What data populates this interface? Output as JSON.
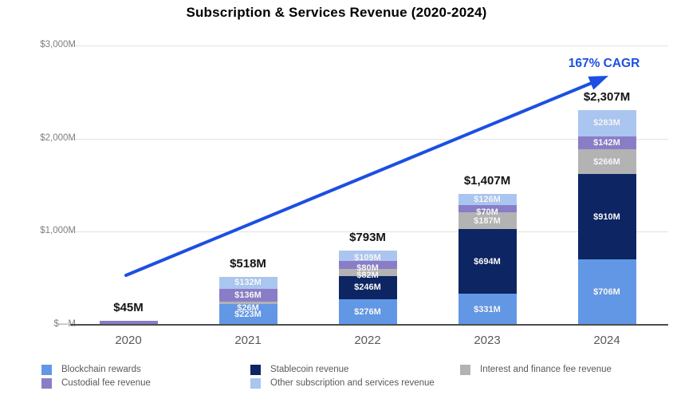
{
  "chart_data": {
    "type": "bar",
    "stacked": true,
    "title": "Subscription & Services Revenue (2020-2024)",
    "annotation": "167% CAGR",
    "unit": "USD millions",
    "ylim": [
      0,
      3000
    ],
    "grid": true,
    "y_ticks": [
      {
        "label": "$—M",
        "value": 0
      },
      {
        "label": "$1,000M",
        "value": 1000
      },
      {
        "label": "$2,000M",
        "value": 2000
      },
      {
        "label": "$3,000M",
        "value": 3000
      }
    ],
    "colors": {
      "Blockchain rewards": "#6297e6",
      "Stablecoin revenue": "#0d2563",
      "Interest and finance fee revenue": "#b3b3b4",
      "Custodial fee revenue": "#8a7dc7",
      "Other subscription and services revenue": "#aac5f0",
      "arrow_blue": "#1c4fe2",
      "cagr_text": "#1c4fe2"
    },
    "bars": [
      {
        "year": "2020",
        "total": "$45M",
        "segments": [
          {
            "name": "Custodial fee revenue",
            "value": 45,
            "label": ""
          }
        ]
      },
      {
        "year": "2021",
        "total": "$518M",
        "segments": [
          {
            "name": "Blockchain rewards",
            "value": 223,
            "label": "$223M"
          },
          {
            "name": "Interest and finance fee revenue",
            "value": 26,
            "label": "$26M"
          },
          {
            "name": "Custodial fee revenue",
            "value": 136,
            "label": "$136M"
          },
          {
            "name": "Other subscription and services revenue",
            "value": 132,
            "label": "$132M"
          }
        ]
      },
      {
        "year": "2022",
        "total": "$793M",
        "segments": [
          {
            "name": "Blockchain rewards",
            "value": 276,
            "label": "$276M"
          },
          {
            "name": "Stablecoin revenue",
            "value": 246,
            "label": "$246M"
          },
          {
            "name": "Interest and finance fee revenue",
            "value": 82,
            "label": "$82M"
          },
          {
            "name": "Custodial fee revenue",
            "value": 80,
            "label": "$80M"
          },
          {
            "name": "Other subscription and services revenue",
            "value": 109,
            "label": "$109M"
          }
        ]
      },
      {
        "year": "2023",
        "total": "$1,407M",
        "segments": [
          {
            "name": "Blockchain rewards",
            "value": 331,
            "label": "$331M"
          },
          {
            "name": "Stablecoin revenue",
            "value": 694,
            "label": "$694M"
          },
          {
            "name": "Interest and finance fee revenue",
            "value": 187,
            "label": "$187M"
          },
          {
            "name": "Custodial fee revenue",
            "value": 70,
            "label": "$70M"
          },
          {
            "name": "Other subscription and services revenue",
            "value": 126,
            "label": "$126M"
          }
        ]
      },
      {
        "year": "2024",
        "total": "$2,307M",
        "segments": [
          {
            "name": "Blockchain rewards",
            "value": 706,
            "label": "$706M"
          },
          {
            "name": "Stablecoin revenue",
            "value": 910,
            "label": "$910M"
          },
          {
            "name": "Interest and finance fee revenue",
            "value": 266,
            "label": "$266M"
          },
          {
            "name": "Custodial fee revenue",
            "value": 142,
            "label": "$142M"
          },
          {
            "name": "Other subscription and services revenue",
            "value": 283,
            "label": "$283M"
          }
        ]
      }
    ],
    "legend": {
      "columns": [
        {
          "items": [
            "Blockchain rewards",
            "Custodial fee revenue"
          ]
        },
        {
          "items": [
            "Stablecoin revenue",
            "Other subscription and services revenue"
          ]
        },
        {
          "items": [
            "Interest and finance fee revenue"
          ]
        }
      ]
    }
  }
}
